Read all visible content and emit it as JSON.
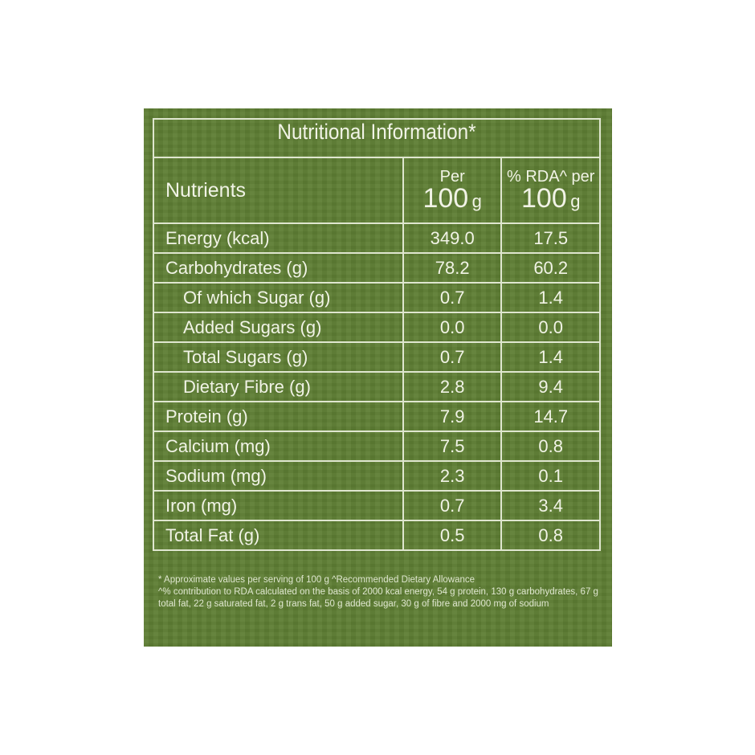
{
  "title": "Nutritional Information*",
  "header": {
    "nutrients": "Nutrients",
    "col1_top": "Per",
    "col1_amount": "100",
    "col1_unit": "g",
    "col2_top": "% RDA^ per",
    "col2_amount": "100",
    "col2_unit": "g"
  },
  "rows": [
    {
      "name": "Energy (kcal)",
      "per100": "349.0",
      "rda": "17.5",
      "indent": false
    },
    {
      "name": "Carbohydrates (g)",
      "per100": "78.2",
      "rda": "60.2",
      "indent": false
    },
    {
      "name": "Of which Sugar (g)",
      "per100": "0.7",
      "rda": "1.4",
      "indent": true
    },
    {
      "name": "Added Sugars (g)",
      "per100": "0.0",
      "rda": "0.0",
      "indent": true
    },
    {
      "name": "Total Sugars (g)",
      "per100": "0.7",
      "rda": "1.4",
      "indent": true
    },
    {
      "name": "Dietary Fibre (g)",
      "per100": "2.8",
      "rda": "9.4",
      "indent": true
    },
    {
      "name": "Protein (g)",
      "per100": "7.9",
      "rda": "14.7",
      "indent": false
    },
    {
      "name": "Calcium (mg)",
      "per100": "7.5",
      "rda": "0.8",
      "indent": false
    },
    {
      "name": "Sodium (mg)",
      "per100": "2.3",
      "rda": "0.1",
      "indent": false
    },
    {
      "name": "Iron (mg)",
      "per100": "0.7",
      "rda": "3.4",
      "indent": false
    },
    {
      "name": "Total Fat (g)",
      "per100": "0.5",
      "rda": "0.8",
      "indent": false
    }
  ],
  "footnotes": [
    "* Approximate values per serving of 100 g ^Recommended Dietary Allowance",
    "^% contribution to RDA calculated on the basis of 2000 kcal energy, 54 g protein, 130 g carbohydrates, 67 g total fat, 22 g saturated fat, 2 g trans fat, 50 g added sugar, 30 g of fibre and 2000 mg of sodium"
  ],
  "colors": {
    "background": "#5e7e34",
    "text": "#f1f3e6",
    "lines": "#dfe6cf"
  }
}
